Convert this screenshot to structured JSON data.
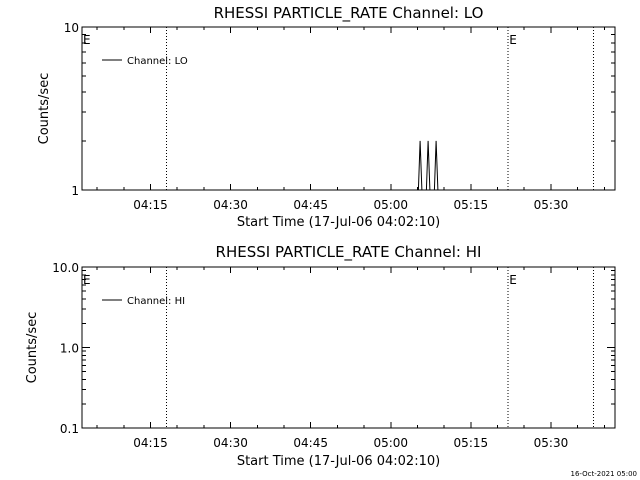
{
  "footer": "16-Oct-2021 05:00",
  "chart_data": [
    {
      "type": "line",
      "title": "RHESSI PARTICLE_RATE Channel: LO",
      "xlabel": "Start Time (17-Jul-06 04:02:10)",
      "ylabel": "Counts/sec",
      "yscale": "log",
      "xlim": [
        "04:02:10",
        "05:42:00"
      ],
      "ylim": [
        1,
        10
      ],
      "x_ticks": [
        "04:15",
        "04:30",
        "04:45",
        "05:00",
        "05:15",
        "05:30"
      ],
      "y_ticks": [
        "1",
        "10"
      ],
      "legend": {
        "entries": [
          "Channel: LO"
        ],
        "position": "top-left"
      },
      "series": [
        {
          "name": "Channel: LO",
          "x": [
            "05:05:10",
            "05:05:30",
            "05:05:50",
            "05:06:10",
            "05:06:40",
            "05:07:00",
            "05:07:20",
            "05:07:40",
            "05:08:10",
            "05:08:30",
            "05:08:50"
          ],
          "y": [
            1,
            2,
            1,
            1,
            1,
            2,
            1,
            1,
            1,
            2,
            1
          ]
        }
      ],
      "vertical_markers": [
        {
          "x": "04:18:00",
          "label": ""
        },
        {
          "x": "05:22:00",
          "label": "E"
        },
        {
          "x": "05:38:00",
          "label": ""
        }
      ],
      "corner_label": "E"
    },
    {
      "type": "line",
      "title": "RHESSI PARTICLE_RATE Channel: HI",
      "xlabel": "Start Time (17-Jul-06 04:02:10)",
      "ylabel": "Counts/sec",
      "yscale": "log",
      "xlim": [
        "04:02:10",
        "05:42:00"
      ],
      "ylim": [
        0.1,
        10
      ],
      "x_ticks": [
        "04:15",
        "04:30",
        "04:45",
        "05:00",
        "05:15",
        "05:30"
      ],
      "y_ticks": [
        "0.1",
        "1.0",
        "10.0"
      ],
      "legend": {
        "entries": [
          "Channel: HI"
        ],
        "position": "top-left"
      },
      "series": [
        {
          "name": "Channel: HI",
          "x": [],
          "y": []
        }
      ],
      "vertical_markers": [
        {
          "x": "04:18:00",
          "label": ""
        },
        {
          "x": "05:22:00",
          "label": "E"
        },
        {
          "x": "05:38:00",
          "label": ""
        }
      ],
      "corner_label": "E"
    }
  ]
}
